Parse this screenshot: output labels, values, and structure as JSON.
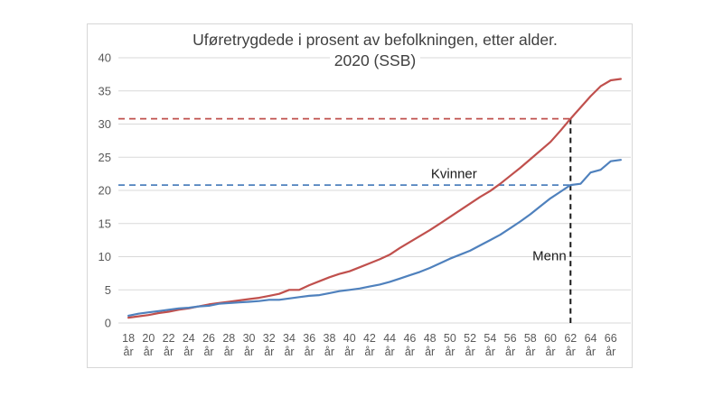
{
  "chart": {
    "title_line1": "Uføretrygdede i prosent av befolkningen, etter alder.",
    "title_line2": "2020 (SSB)",
    "colors": {
      "kvinner": "#C0504D",
      "menn": "#4F81BD",
      "grid": "#d9d9d9",
      "axis_text": "#595959",
      "title_text": "#404040",
      "marker": "#1a1a1a",
      "border": "#d7d7d7"
    }
  },
  "chart_data": {
    "type": "line",
    "title": "Uføretrygdede i prosent av befolkningen, etter alder. 2020 (SSB)",
    "xlabel": "",
    "ylabel": "",
    "x_unit_suffix": "år",
    "x": [
      18,
      19,
      20,
      21,
      22,
      23,
      24,
      25,
      26,
      27,
      28,
      29,
      30,
      31,
      32,
      33,
      34,
      35,
      36,
      37,
      38,
      39,
      40,
      41,
      42,
      43,
      44,
      45,
      46,
      47,
      48,
      49,
      50,
      51,
      52,
      53,
      54,
      55,
      56,
      57,
      58,
      59,
      60,
      61,
      62,
      63,
      64,
      65,
      66,
      67
    ],
    "series": [
      {
        "name": "Kvinner",
        "color": "#C0504D",
        "values": [
          0.8,
          1.0,
          1.2,
          1.5,
          1.7,
          2.0,
          2.2,
          2.5,
          2.8,
          3.0,
          3.2,
          3.4,
          3.6,
          3.8,
          4.1,
          4.4,
          5.0,
          5.0,
          5.7,
          6.3,
          6.9,
          7.4,
          7.8,
          8.4,
          9.0,
          9.6,
          10.3,
          11.3,
          12.2,
          13.1,
          14.0,
          15.0,
          16.0,
          17.0,
          18.0,
          19.0,
          19.9,
          21.0,
          22.2,
          23.4,
          24.7,
          26.0,
          27.3,
          29.0,
          30.8,
          32.5,
          34.2,
          35.7,
          36.6,
          36.8
        ]
      },
      {
        "name": "Menn",
        "color": "#4F81BD",
        "values": [
          1.1,
          1.4,
          1.6,
          1.8,
          2.0,
          2.2,
          2.3,
          2.5,
          2.6,
          2.9,
          3.0,
          3.1,
          3.2,
          3.3,
          3.5,
          3.5,
          3.7,
          3.9,
          4.1,
          4.2,
          4.5,
          4.8,
          5.0,
          5.2,
          5.5,
          5.8,
          6.2,
          6.7,
          7.2,
          7.7,
          8.3,
          9.0,
          9.7,
          10.3,
          10.9,
          11.7,
          12.5,
          13.3,
          14.3,
          15.3,
          16.4,
          17.6,
          18.8,
          19.8,
          20.8,
          21.0,
          22.7,
          23.1,
          24.4,
          24.6
        ]
      }
    ],
    "x_tick_ages": [
      18,
      20,
      22,
      24,
      26,
      28,
      30,
      32,
      34,
      36,
      38,
      40,
      42,
      44,
      46,
      48,
      50,
      52,
      54,
      56,
      58,
      60,
      62,
      64,
      66
    ],
    "y_ticks": [
      0,
      5,
      10,
      15,
      20,
      25,
      30,
      35,
      40
    ],
    "ylim": [
      0,
      40
    ],
    "xlim": [
      17,
      68
    ],
    "grid": true,
    "legend_position": "direct-labels",
    "reference_lines": [
      {
        "series": "Kvinner",
        "value": 30.8,
        "at_x": 62,
        "color": "#C0504D",
        "style": "dashed"
      },
      {
        "series": "Menn",
        "value": 20.8,
        "at_x": 62,
        "color": "#4F81BD",
        "style": "dashed"
      }
    ],
    "vertical_marker": {
      "x": 62,
      "from_value": 0,
      "to_value": 30.8,
      "color": "#1a1a1a",
      "style": "dashed"
    },
    "annotations": [
      {
        "text": "Kvinner",
        "x": 50.4,
        "y": 22.4
      },
      {
        "text": "Menn",
        "x": 59.9,
        "y": 10.1
      }
    ]
  }
}
